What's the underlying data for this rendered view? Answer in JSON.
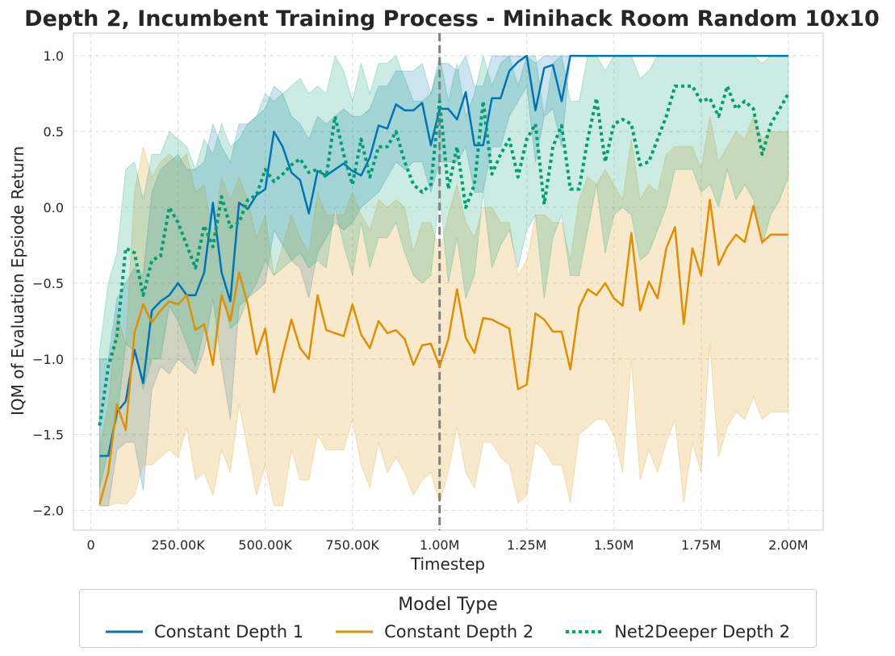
{
  "chart_data": {
    "type": "line",
    "title": "Depth 2, Incumbent Training Process - Minihack Room Random 10x10",
    "xlabel": "Timestep",
    "ylabel": "IQM of Evaluation Epsiode Return",
    "xlim": [
      -50000,
      2100000
    ],
    "ylim": [
      -2.13,
      1.15
    ],
    "xticks": [
      0,
      250000,
      500000,
      750000,
      1000000,
      1250000,
      1500000,
      1750000,
      2000000
    ],
    "xtick_labels": [
      "0",
      "250.00K",
      "500.00K",
      "750.00K",
      "1.00M",
      "1.25M",
      "1.50M",
      "1.75M",
      "2.00M"
    ],
    "yticks": [
      -2.0,
      -1.5,
      -1.0,
      -0.5,
      0.0,
      0.5,
      1.0
    ],
    "ytick_labels": [
      "−2.0",
      "−1.5",
      "−1.0",
      "−0.5",
      "0.0",
      "0.5",
      "1.0"
    ],
    "grid": true,
    "vline": {
      "x": 1000000,
      "color": "#808080",
      "style": "dashed"
    },
    "x": [
      25000,
      50000,
      75000,
      100000,
      125000,
      150000,
      175000,
      200000,
      225000,
      250000,
      275000,
      300000,
      325000,
      350000,
      375000,
      400000,
      425000,
      450000,
      475000,
      500000,
      525000,
      550000,
      575000,
      600000,
      625000,
      650000,
      675000,
      700000,
      725000,
      750000,
      775000,
      800000,
      825000,
      850000,
      875000,
      900000,
      925000,
      950000,
      975000,
      1000000,
      1025000,
      1050000,
      1075000,
      1100000,
      1125000,
      1150000,
      1175000,
      1200000,
      1225000,
      1250000,
      1275000,
      1300000,
      1325000,
      1350000,
      1375000,
      1400000,
      1425000,
      1450000,
      1475000,
      1500000,
      1525000,
      1550000,
      1575000,
      1600000,
      1625000,
      1650000,
      1675000,
      1700000,
      1725000,
      1750000,
      1775000,
      1800000,
      1825000,
      1850000,
      1875000,
      1900000,
      1925000,
      1950000,
      1975000,
      2000000
    ],
    "legend": {
      "title": "Model Type",
      "placement": "below"
    },
    "series": [
      {
        "name": "Constant Depth 1",
        "color": "#0173b2",
        "style": "solid",
        "values": [
          -1.64,
          -1.64,
          -1.35,
          -1.28,
          -0.94,
          -1.16,
          -0.68,
          -0.62,
          -0.58,
          -0.5,
          -0.58,
          -0.58,
          -0.43,
          0.03,
          -0.43,
          -0.62,
          0.03,
          -0.01,
          0.08,
          0.12,
          0.5,
          0.4,
          0.23,
          0.18,
          -0.04,
          0.24,
          0.21,
          0.25,
          0.29,
          0.24,
          0.21,
          0.33,
          0.54,
          0.52,
          0.68,
          0.64,
          0.64,
          0.69,
          0.41,
          0.65,
          0.65,
          0.58,
          0.76,
          0.41,
          0.41,
          0.72,
          0.72,
          0.9,
          0.96,
          1.0,
          0.64,
          0.92,
          0.94,
          0.7,
          1.0,
          1.0,
          1.0,
          1.0,
          1.0,
          1.0,
          1.0,
          1.0,
          1.0,
          1.0,
          1.0,
          1.0,
          1.0,
          1.0,
          1.0,
          1.0,
          1.0,
          1.0,
          1.0,
          1.0,
          1.0,
          1.0,
          1.0,
          1.0,
          1.0,
          1.0
        ],
        "lower": [
          -1.97,
          -1.97,
          -1.6,
          -1.55,
          -1.55,
          -1.87,
          -1.2,
          -1.05,
          -1.1,
          -1.0,
          -1.05,
          -1.1,
          -0.95,
          -0.6,
          -1.05,
          -1.4,
          -0.65,
          -0.6,
          -0.55,
          -0.5,
          -0.15,
          -0.25,
          -0.35,
          -0.4,
          -0.6,
          -0.3,
          -0.2,
          -0.1,
          -0.15,
          -0.1,
          0.0,
          0.05,
          0.1,
          0.2,
          0.3,
          0.25,
          0.3,
          0.3,
          0.1,
          0.3,
          0.3,
          0.3,
          0.4,
          0.1,
          0.1,
          0.4,
          0.4,
          0.6,
          0.7,
          0.8,
          0.3,
          0.6,
          0.65,
          0.4,
          1.0,
          1.0,
          1.0,
          1.0,
          1.0,
          1.0,
          1.0,
          1.0,
          1.0,
          1.0,
          1.0,
          1.0,
          1.0,
          1.0,
          1.0,
          1.0,
          1.0,
          1.0,
          1.0,
          1.0,
          1.0,
          1.0,
          1.0,
          1.0,
          1.0,
          1.0
        ],
        "upper": [
          -1.0,
          -1.0,
          -0.6,
          -0.5,
          -0.4,
          -0.45,
          0.1,
          0.25,
          0.3,
          0.35,
          0.25,
          0.25,
          0.3,
          0.55,
          0.4,
          0.3,
          0.55,
          0.55,
          0.6,
          0.65,
          0.8,
          0.75,
          0.6,
          0.55,
          0.45,
          0.6,
          0.55,
          0.6,
          0.65,
          0.6,
          0.6,
          0.65,
          0.8,
          0.8,
          0.9,
          0.9,
          0.9,
          0.95,
          0.75,
          0.95,
          0.95,
          0.9,
          1.0,
          0.8,
          0.8,
          1.0,
          1.0,
          1.0,
          1.0,
          1.0,
          0.95,
          1.0,
          1.0,
          1.0,
          1.0,
          1.0,
          1.0,
          1.0,
          1.0,
          1.0,
          1.0,
          1.0,
          1.0,
          1.0,
          1.0,
          1.0,
          1.0,
          1.0,
          1.0,
          1.0,
          1.0,
          1.0,
          1.0,
          1.0,
          1.0,
          1.0,
          1.0,
          1.0,
          1.0,
          1.0
        ]
      },
      {
        "name": "Constant Depth 2",
        "color": "#de8f05",
        "style": "solid",
        "values": [
          -1.96,
          -1.75,
          -1.3,
          -1.47,
          -0.83,
          -0.64,
          -0.76,
          -0.68,
          -0.62,
          -0.64,
          -0.58,
          -0.81,
          -0.77,
          -1.04,
          -0.58,
          -0.75,
          -0.43,
          -0.64,
          -0.97,
          -0.8,
          -1.22,
          -0.97,
          -0.74,
          -0.93,
          -1.0,
          -0.58,
          -0.81,
          -0.83,
          -0.85,
          -0.64,
          -0.84,
          -0.93,
          -0.75,
          -0.83,
          -0.81,
          -0.87,
          -1.04,
          -0.91,
          -0.9,
          -1.05,
          -0.87,
          -0.54,
          -0.86,
          -0.96,
          -0.73,
          -0.74,
          -0.77,
          -0.8,
          -1.2,
          -1.17,
          -0.7,
          -0.74,
          -0.82,
          -0.82,
          -1.07,
          -0.66,
          -0.54,
          -0.58,
          -0.5,
          -0.6,
          -0.65,
          -0.17,
          -0.68,
          -0.49,
          -0.6,
          -0.27,
          -0.13,
          -0.77,
          -0.27,
          -0.45,
          0.05,
          -0.38,
          -0.26,
          -0.18,
          -0.23,
          0.01,
          -0.23,
          -0.18,
          -0.18,
          -0.18
        ],
        "lower": [
          -1.97,
          -1.97,
          -1.95,
          -1.96,
          -1.9,
          -1.7,
          -1.7,
          -1.65,
          -1.6,
          -1.65,
          -1.45,
          -1.8,
          -1.75,
          -1.9,
          -1.6,
          -1.75,
          -1.3,
          -1.6,
          -1.9,
          -1.7,
          -1.97,
          -1.97,
          -1.6,
          -1.8,
          -1.8,
          -1.5,
          -1.6,
          -1.6,
          -1.6,
          -1.4,
          -1.7,
          -1.85,
          -1.55,
          -1.75,
          -1.65,
          -1.75,
          -1.9,
          -1.8,
          -1.75,
          -1.95,
          -1.75,
          -1.45,
          -1.75,
          -1.85,
          -1.55,
          -1.55,
          -1.65,
          -1.7,
          -1.95,
          -1.9,
          -1.55,
          -1.6,
          -1.7,
          -1.7,
          -1.95,
          -1.5,
          -1.45,
          -1.4,
          -1.4,
          -1.5,
          -1.75,
          -1.0,
          -1.8,
          -1.6,
          -1.75,
          -1.55,
          -1.4,
          -1.95,
          -1.55,
          -1.75,
          -0.9,
          -1.65,
          -1.45,
          -1.35,
          -1.4,
          -1.25,
          -1.4,
          -1.35,
          -1.35,
          -1.35
        ],
        "upper": [
          -1.6,
          -1.3,
          -0.7,
          -0.9,
          0.1,
          0.4,
          0.2,
          0.3,
          0.35,
          0.3,
          0.35,
          0.1,
          0.15,
          -0.2,
          0.2,
          0.05,
          0.2,
          0.05,
          -0.2,
          -0.05,
          -0.45,
          -0.25,
          -0.05,
          -0.2,
          -0.3,
          0.1,
          -0.05,
          -0.05,
          -0.05,
          0.1,
          -0.05,
          -0.15,
          0.05,
          0.0,
          0.05,
          0.0,
          -0.3,
          -0.1,
          -0.1,
          -0.3,
          -0.05,
          0.15,
          -0.1,
          -0.2,
          0.0,
          0.0,
          -0.1,
          -0.1,
          -0.45,
          -0.35,
          -0.05,
          -0.05,
          -0.1,
          -0.1,
          -0.35,
          0.05,
          0.2,
          0.15,
          0.25,
          0.15,
          0.05,
          0.45,
          0.05,
          0.15,
          0.1,
          0.35,
          0.4,
          0.4,
          0.4,
          0.25,
          0.6,
          0.3,
          0.4,
          0.5,
          0.45,
          0.6,
          0.45,
          0.5,
          0.5,
          0.5
        ]
      },
      {
        "name": "Net2Deeper Depth 2",
        "color": "#029e73",
        "style": "dotted",
        "values": [
          -1.44,
          -1.05,
          -0.85,
          -0.27,
          -0.3,
          -0.58,
          -0.35,
          -0.32,
          0.0,
          -0.1,
          -0.25,
          -0.4,
          -0.12,
          -0.26,
          0.07,
          -0.13,
          -0.1,
          0.05,
          0.08,
          0.25,
          0.17,
          0.22,
          0.28,
          0.32,
          0.23,
          0.25,
          0.2,
          0.6,
          0.35,
          0.15,
          0.45,
          0.2,
          0.4,
          0.4,
          0.5,
          0.3,
          0.15,
          0.1,
          0.15,
          0.7,
          0.12,
          0.4,
          0.0,
          0.15,
          0.7,
          0.22,
          0.35,
          0.45,
          0.2,
          0.45,
          0.55,
          0.02,
          0.4,
          0.54,
          0.12,
          0.12,
          0.45,
          0.72,
          0.3,
          0.55,
          0.58,
          0.55,
          0.28,
          0.3,
          0.45,
          0.6,
          0.8,
          0.8,
          0.8,
          0.7,
          0.72,
          0.6,
          0.8,
          0.65,
          0.7,
          0.65,
          0.35,
          0.55,
          0.65,
          0.75
        ],
        "lower": [
          -1.85,
          -1.6,
          -1.4,
          -0.9,
          -0.95,
          -1.2,
          -1.0,
          -1.0,
          -0.65,
          -0.75,
          -0.9,
          -1.05,
          -0.8,
          -0.95,
          -0.55,
          -0.8,
          -0.75,
          -0.6,
          -0.5,
          -0.35,
          -0.45,
          -0.4,
          -0.35,
          -0.3,
          -0.4,
          -0.35,
          -0.4,
          0.0,
          -0.25,
          -0.45,
          -0.1,
          -0.4,
          -0.2,
          -0.2,
          -0.1,
          -0.3,
          -0.45,
          -0.5,
          -0.45,
          0.1,
          -0.5,
          -0.2,
          -0.6,
          -0.45,
          0.1,
          -0.4,
          -0.25,
          -0.15,
          -0.4,
          -0.15,
          -0.05,
          -0.6,
          -0.2,
          -0.05,
          -0.45,
          -0.45,
          -0.15,
          0.15,
          -0.3,
          -0.05,
          0.0,
          -0.05,
          -0.35,
          -0.3,
          -0.15,
          0.0,
          0.25,
          0.25,
          0.25,
          0.1,
          0.15,
          0.0,
          0.25,
          0.05,
          0.15,
          0.05,
          -0.25,
          -0.05,
          0.05,
          0.2
        ],
        "upper": [
          -0.95,
          -0.5,
          -0.3,
          0.25,
          0.3,
          0.05,
          0.35,
          0.35,
          0.5,
          0.45,
          0.4,
          0.25,
          0.45,
          0.35,
          0.55,
          0.4,
          0.45,
          0.55,
          0.6,
          0.75,
          0.7,
          0.75,
          0.8,
          0.85,
          0.75,
          0.8,
          0.75,
          1.0,
          0.9,
          0.7,
          0.95,
          0.75,
          0.95,
          0.95,
          1.0,
          0.85,
          0.7,
          0.7,
          0.75,
          1.0,
          0.7,
          0.95,
          0.6,
          0.75,
          1.0,
          0.8,
          0.95,
          1.0,
          0.8,
          1.0,
          1.0,
          0.6,
          0.95,
          1.0,
          0.7,
          0.7,
          1.0,
          1.0,
          0.9,
          1.0,
          1.0,
          1.0,
          0.85,
          0.9,
          1.0,
          1.0,
          1.0,
          1.0,
          1.0,
          1.0,
          1.0,
          1.0,
          1.0,
          1.0,
          1.0,
          1.0,
          0.95,
          1.0,
          1.0,
          1.0
        ]
      }
    ]
  }
}
